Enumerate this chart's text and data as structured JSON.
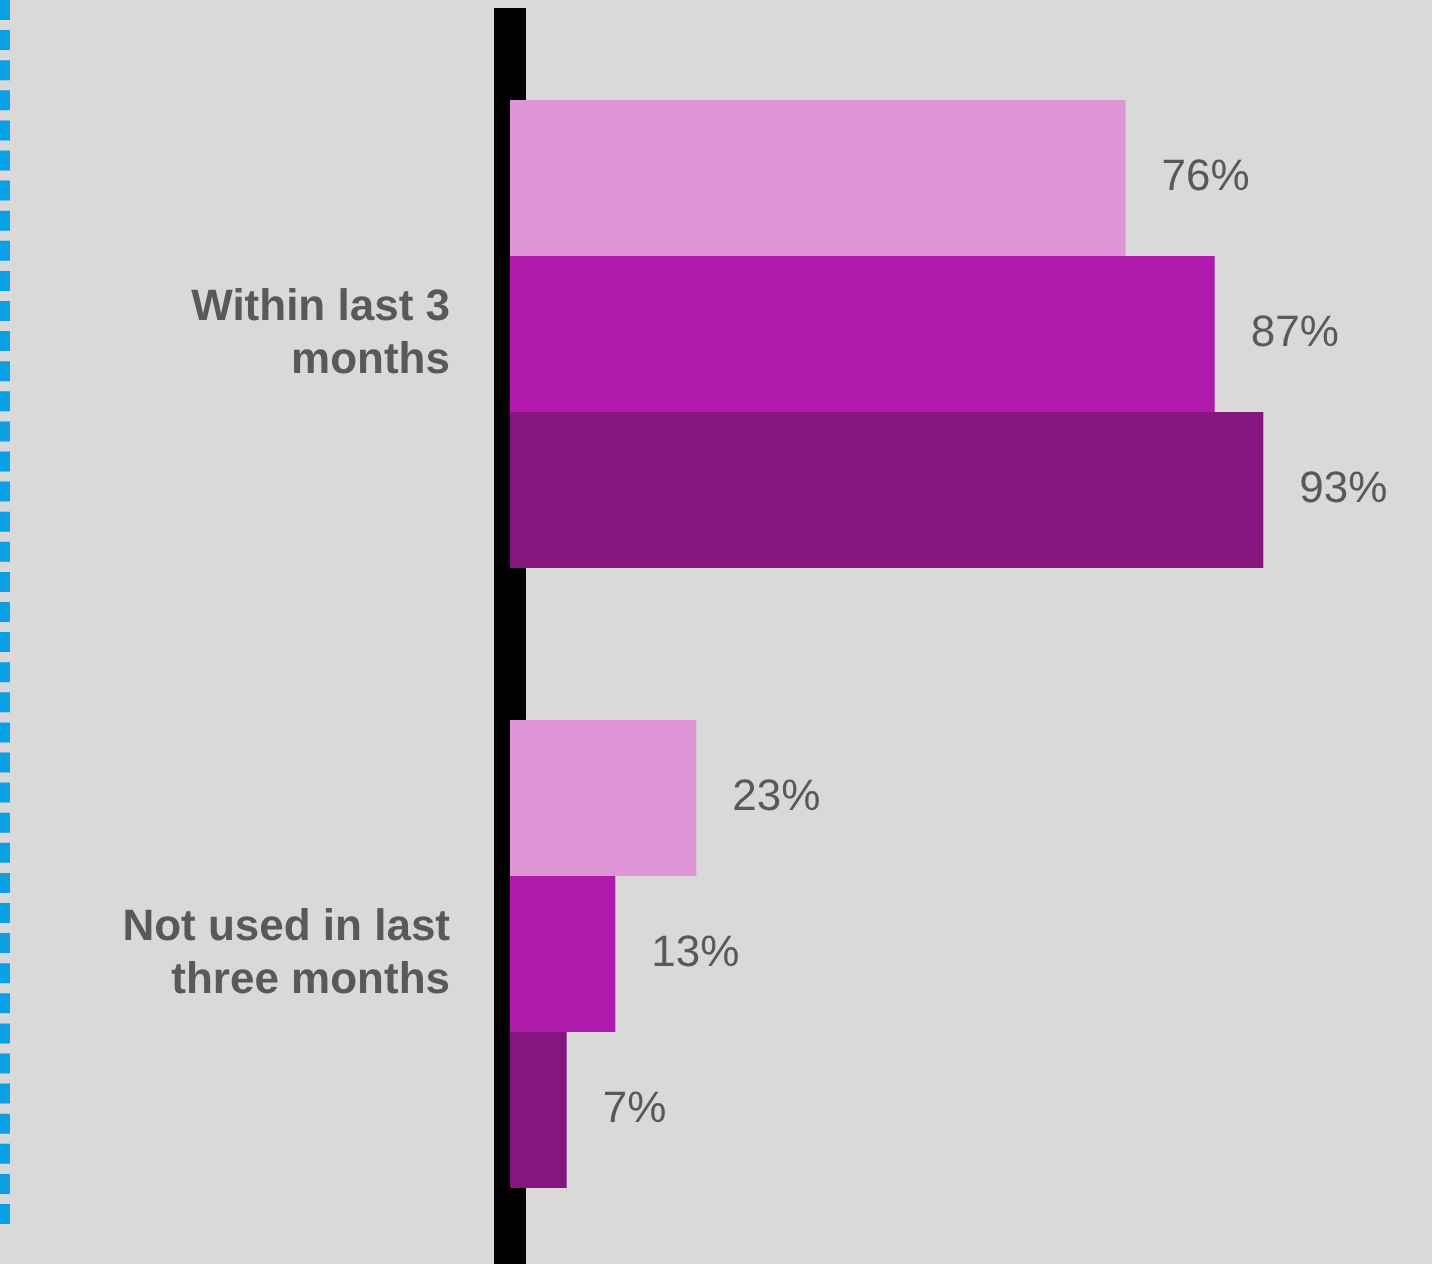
{
  "chart_data": {
    "type": "bar",
    "orientation": "horizontal",
    "categories": [
      "Within last 3 months",
      "Not used in last three months"
    ],
    "series": [
      {
        "color": "#de96d6",
        "values": [
          76,
          23
        ],
        "value_labels": [
          "76%",
          "23%"
        ]
      },
      {
        "color": "#b01aad",
        "values": [
          87,
          13
        ],
        "value_labels": [
          "87%",
          "13%"
        ]
      },
      {
        "color": "#86157e",
        "values": [
          93,
          7
        ],
        "value_labels": [
          "93%",
          "7%"
        ]
      }
    ],
    "grid": false,
    "legend": false,
    "tick_labels": "y"
  }
}
